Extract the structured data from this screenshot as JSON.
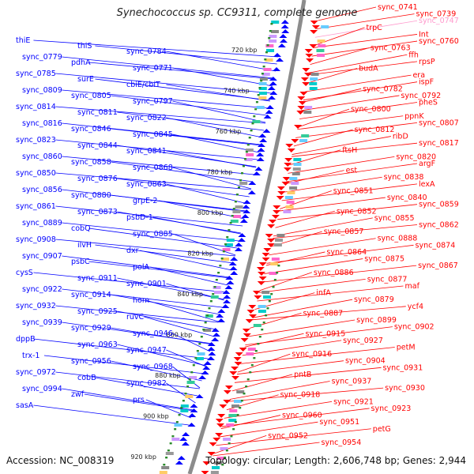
{
  "title": "Synechococcus sp. CC9311, complete genome",
  "footer": {
    "accession": "Accession: NC_008319",
    "topology": "Topology: circular; Length: 2,606,748 bp; Genes: 2,944"
  },
  "colors": {
    "minus": "#0000ff",
    "plus": "#ff0000",
    "pink": "#ff99cc",
    "backbone": "#8c8c8c",
    "dots": "#2a8a2a"
  },
  "kbp_labels": [
    "720 kbp",
    "740 kbp",
    "760 kbp",
    "780 kbp",
    "800 kbp",
    "820 kbp",
    "840 kbp",
    "860 kbp",
    "880 kbp",
    "900 kbp",
    "920 kbp"
  ],
  "left_genes": [
    "thiE",
    "thiS",
    "sync_0784",
    "sync_0779",
    "pdhA",
    "sync_0771",
    "sync_0785",
    "surE",
    "cbiE/cbiT",
    "sync_0809",
    "sync_0805",
    "sync_0797",
    "sync_0814",
    "sync_0811",
    "sync_0822",
    "sync_0816",
    "sync_0846",
    "sync_0845",
    "sync_0823",
    "sync_0844",
    "sync_0841",
    "sync_0860",
    "sync_0858",
    "sync_0868",
    "sync_0850",
    "sync_0876",
    "sync_0863",
    "sync_0856",
    "sync_0880",
    "grpE-2",
    "sync_0861",
    "sync_0873",
    "psbD-1",
    "sync_0889",
    "cobQ",
    "sync_0885",
    "sync_0908",
    "ilvH",
    "dxr",
    "sync_0907",
    "psbC",
    "polA",
    "cysS",
    "sync_0911",
    "sync_0901",
    "sync_0922",
    "sync_0914",
    "hom",
    "sync_0932",
    "sync_0925",
    "ruvC",
    "sync_0939",
    "sync_0929",
    "sync_0946",
    "dppB",
    "sync_0963",
    "sync_0947",
    "trx-1",
    "sync_0956",
    "sync_0968",
    "sync_0972",
    "cobB",
    "sync_0982",
    "sync_0994",
    "zwf",
    "prs",
    "sasA"
  ],
  "right_genes": [
    "sync_0741",
    "sync_0739",
    "sync_0747",
    "trpC",
    "Int",
    "sync_0760",
    "sync_0763",
    "ffh",
    "rpsP",
    "budA",
    "era",
    "ispF",
    "sync_0782",
    "sync_0792",
    "pheS",
    "sync_0800",
    "ppnK",
    "sync_0807",
    "sync_0812",
    "ribD",
    "sync_0817",
    "ftsH",
    "sync_0820",
    "argF",
    "est",
    "sync_0838",
    "lexA",
    "sync_0851",
    "sync_0840",
    "sync_0859",
    "sync_0852",
    "sync_0855",
    "sync_0862",
    "sync_0857",
    "sync_0888",
    "sync_0874",
    "sync_0864",
    "sync_0875",
    "sync_0867",
    "sync_0886",
    "sync_0877",
    "maf",
    "infA",
    "sync_0879",
    "ycf4",
    "sync_0887",
    "sync_0899",
    "sync_0902",
    "sync_0915",
    "sync_0927",
    "petM",
    "sync_0916",
    "sync_0904",
    "sync_0931",
    "pntB",
    "sync_0937",
    "sync_0930",
    "sync_0918",
    "sync_0921",
    "sync_0923",
    "sync_0960",
    "sync_0951",
    "petG",
    "sync_0952",
    "sync_0954"
  ]
}
